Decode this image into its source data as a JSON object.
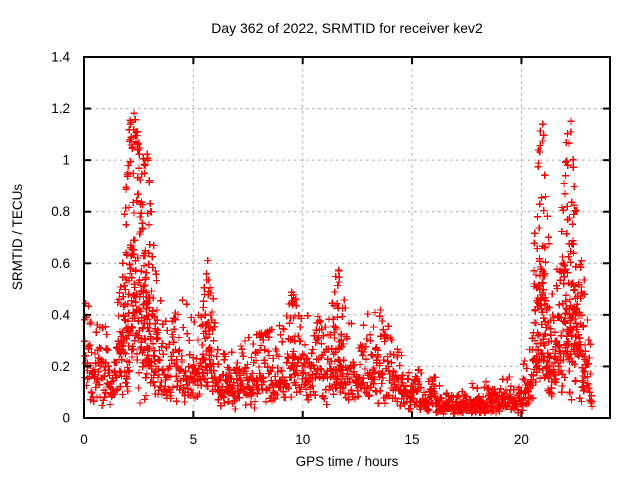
{
  "figure": {
    "background": "#ffffff",
    "frame_color": "#000000",
    "grid_color": "#a9a9a9",
    "text_color": "#000000"
  },
  "chart_data": {
    "type": "scatter",
    "title": "Day 362 of 2022, SRMTID for receiver kev2",
    "xlabel": "GPS time / hours",
    "ylabel": "SRMTID / TECUs",
    "xlim": [
      0,
      24.05
    ],
    "ylim": [
      0,
      1.4
    ],
    "xticks": [
      0,
      5,
      10,
      15,
      20
    ],
    "xtick_labels": [
      "0",
      "5",
      "10",
      "15",
      "20"
    ],
    "yticks": [
      0,
      0.2,
      0.4,
      0.6,
      0.8,
      1.0,
      1.2,
      1.4
    ],
    "ytick_labels": [
      "0",
      "0.2",
      "0.4",
      "0.6",
      "0.8",
      "1",
      "1.2",
      "1.4"
    ],
    "grid": true,
    "legend": "none",
    "marker": {
      "shape": "plus",
      "color": "#ff0000",
      "size": 7
    },
    "series_name": "SRMTID",
    "notable_points": {
      "max_value": 1.23,
      "max_time_hours": 2.1,
      "morning_peak_span_hours": [
        1.9,
        3.1
      ],
      "spike_times_hours": [
        5.7,
        9.6,
        11.6,
        20.9,
        22.25
      ],
      "spike_values": [
        0.62,
        0.53,
        0.62,
        1.22,
        1.19
      ],
      "quiet_span_hours": [
        15.5,
        19.8
      ],
      "quiet_level": 0.05,
      "data_end_hours": 23.25
    },
    "envelope": [
      [
        0.0,
        0.2,
        0.46
      ],
      [
        0.5,
        0.16,
        0.42
      ],
      [
        0.9,
        0.15,
        0.4
      ],
      [
        1.3,
        0.13,
        0.3
      ],
      [
        1.7,
        0.25,
        0.55
      ],
      [
        1.95,
        0.45,
        1.0
      ],
      [
        2.1,
        0.6,
        1.23
      ],
      [
        2.35,
        0.6,
        1.18
      ],
      [
        2.6,
        0.5,
        1.1
      ],
      [
        2.9,
        0.47,
        1.08
      ],
      [
        3.1,
        0.33,
        0.78
      ],
      [
        3.4,
        0.22,
        0.5
      ],
      [
        3.8,
        0.17,
        0.38
      ],
      [
        4.2,
        0.2,
        0.45
      ],
      [
        4.5,
        0.22,
        0.5
      ],
      [
        4.9,
        0.18,
        0.42
      ],
      [
        5.3,
        0.2,
        0.45
      ],
      [
        5.65,
        0.28,
        0.63
      ],
      [
        5.85,
        0.24,
        0.52
      ],
      [
        6.1,
        0.14,
        0.32
      ],
      [
        6.6,
        0.12,
        0.27
      ],
      [
        7.1,
        0.13,
        0.3
      ],
      [
        7.6,
        0.14,
        0.32
      ],
      [
        8.1,
        0.15,
        0.35
      ],
      [
        8.6,
        0.17,
        0.4
      ],
      [
        9.1,
        0.15,
        0.35
      ],
      [
        9.55,
        0.24,
        0.53
      ],
      [
        9.8,
        0.2,
        0.45
      ],
      [
        10.2,
        0.17,
        0.4
      ],
      [
        10.7,
        0.18,
        0.42
      ],
      [
        11.2,
        0.17,
        0.4
      ],
      [
        11.6,
        0.28,
        0.62
      ],
      [
        11.9,
        0.2,
        0.48
      ],
      [
        12.4,
        0.15,
        0.35
      ],
      [
        12.9,
        0.18,
        0.42
      ],
      [
        13.4,
        0.2,
        0.45
      ],
      [
        13.9,
        0.17,
        0.4
      ],
      [
        14.4,
        0.13,
        0.3
      ],
      [
        14.8,
        0.09,
        0.2
      ],
      [
        15.2,
        0.1,
        0.22
      ],
      [
        15.6,
        0.06,
        0.14
      ],
      [
        16.0,
        0.08,
        0.17
      ],
      [
        16.4,
        0.05,
        0.11
      ],
      [
        16.9,
        0.045,
        0.1
      ],
      [
        17.4,
        0.05,
        0.12
      ],
      [
        17.7,
        0.06,
        0.15
      ],
      [
        18.1,
        0.05,
        0.12
      ],
      [
        18.45,
        0.065,
        0.17
      ],
      [
        18.8,
        0.05,
        0.12
      ],
      [
        19.35,
        0.07,
        0.18
      ],
      [
        19.7,
        0.055,
        0.13
      ],
      [
        20.1,
        0.09,
        0.25
      ],
      [
        20.45,
        0.16,
        0.48
      ],
      [
        20.7,
        0.38,
        1.0
      ],
      [
        20.95,
        0.5,
        1.22
      ],
      [
        21.15,
        0.33,
        0.85
      ],
      [
        21.45,
        0.2,
        0.48
      ],
      [
        21.75,
        0.28,
        0.7
      ],
      [
        22.0,
        0.42,
        1.05
      ],
      [
        22.25,
        0.48,
        1.19
      ],
      [
        22.5,
        0.38,
        0.95
      ],
      [
        22.75,
        0.26,
        0.62
      ],
      [
        23.0,
        0.2,
        0.46
      ],
      [
        23.15,
        0.13,
        0.3
      ],
      [
        23.25,
        0.08,
        0.18
      ]
    ],
    "sampling": {
      "t_start": 0,
      "t_end": 23.25,
      "dt_hours": 0.015,
      "seed": 3622022,
      "sigma_base": 0.42
    }
  }
}
